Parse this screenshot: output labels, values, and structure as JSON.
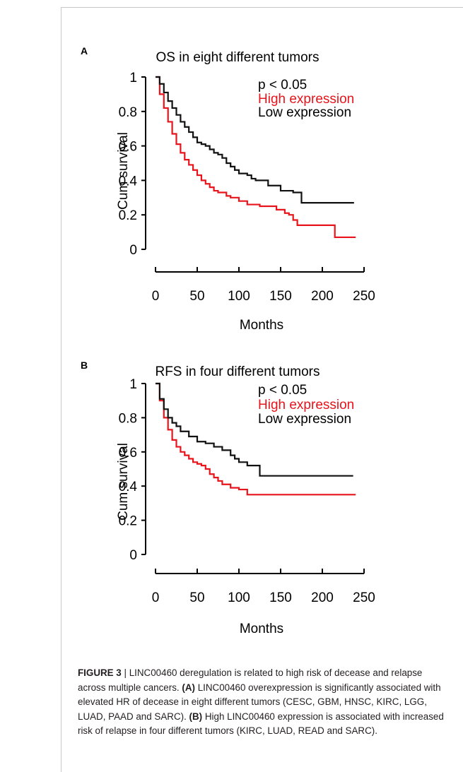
{
  "chart_data": [
    {
      "type": "line",
      "panel_label": "A",
      "title": "OS in eight different tumors",
      "xlabel": "Months",
      "ylabel": "Cum survival",
      "xlim": [
        0,
        250
      ],
      "ylim": [
        0,
        1
      ],
      "xticks": [
        "0",
        "50",
        "100",
        "150",
        "200",
        "250"
      ],
      "yticks": [
        "0",
        "0.2",
        "0.4",
        "0.6",
        "0.8",
        "1"
      ],
      "legend": {
        "placement": "top-right",
        "pvalue": "p < 0.05",
        "entries": [
          "High expression",
          "Low expression"
        ]
      },
      "series": [
        {
          "name": "High expression",
          "color": "#e8141b",
          "x": [
            0,
            5,
            10,
            15,
            20,
            25,
            30,
            35,
            40,
            45,
            50,
            55,
            60,
            65,
            70,
            75,
            80,
            85,
            90,
            100,
            110,
            125,
            135,
            145,
            155,
            160,
            165,
            170,
            185,
            200,
            213,
            215,
            240
          ],
          "y": [
            1,
            0.9,
            0.82,
            0.74,
            0.67,
            0.61,
            0.56,
            0.52,
            0.49,
            0.46,
            0.43,
            0.4,
            0.38,
            0.36,
            0.34,
            0.33,
            0.33,
            0.31,
            0.3,
            0.28,
            0.26,
            0.25,
            0.25,
            0.23,
            0.21,
            0.2,
            0.17,
            0.14,
            0.14,
            0.14,
            0.14,
            0.07,
            0.07
          ]
        },
        {
          "name": "Low expression",
          "color": "#111111",
          "x": [
            0,
            5,
            10,
            15,
            20,
            25,
            30,
            35,
            40,
            45,
            50,
            55,
            60,
            65,
            70,
            75,
            80,
            85,
            90,
            95,
            100,
            110,
            115,
            120,
            125,
            135,
            150,
            165,
            172,
            175,
            200,
            238
          ],
          "y": [
            1,
            0.96,
            0.91,
            0.86,
            0.82,
            0.78,
            0.74,
            0.71,
            0.68,
            0.65,
            0.62,
            0.61,
            0.6,
            0.58,
            0.56,
            0.55,
            0.53,
            0.5,
            0.48,
            0.46,
            0.44,
            0.43,
            0.41,
            0.4,
            0.4,
            0.37,
            0.34,
            0.33,
            0.33,
            0.27,
            0.27,
            0.27
          ]
        }
      ]
    },
    {
      "type": "line",
      "panel_label": "B",
      "title": "RFS in four different tumors",
      "xlabel": "Months",
      "ylabel": "Cum survival",
      "xlim": [
        0,
        250
      ],
      "ylim": [
        0,
        1
      ],
      "xticks": [
        "0",
        "50",
        "100",
        "150",
        "200",
        "250"
      ],
      "yticks": [
        "0",
        "0.2",
        "0.4",
        "0.6",
        "0.8",
        "1"
      ],
      "legend": {
        "placement": "top-right",
        "pvalue": "p < 0.05",
        "entries": [
          "High expression",
          "Low expression"
        ]
      },
      "series": [
        {
          "name": "High expression",
          "color": "#e8141b",
          "x": [
            0,
            5,
            10,
            15,
            20,
            25,
            30,
            35,
            40,
            45,
            50,
            55,
            60,
            65,
            70,
            75,
            80,
            90,
            100,
            110,
            240
          ],
          "y": [
            1,
            0.9,
            0.8,
            0.73,
            0.67,
            0.63,
            0.6,
            0.58,
            0.56,
            0.54,
            0.53,
            0.52,
            0.5,
            0.47,
            0.45,
            0.43,
            0.41,
            0.39,
            0.38,
            0.35,
            0.35
          ]
        },
        {
          "name": "Low expression",
          "color": "#111111",
          "x": [
            0,
            5,
            10,
            15,
            20,
            25,
            30,
            40,
            50,
            60,
            70,
            80,
            90,
            95,
            100,
            110,
            125,
            237
          ],
          "y": [
            1,
            0.91,
            0.85,
            0.8,
            0.77,
            0.75,
            0.72,
            0.69,
            0.66,
            0.65,
            0.63,
            0.61,
            0.58,
            0.56,
            0.54,
            0.52,
            0.46,
            0.46
          ]
        }
      ]
    }
  ],
  "caption": {
    "figure_label": "FIGURE 3",
    "separator": "|",
    "intro": "LINC00460 deregulation is related to high risk of decease and relapse across multiple cancers.",
    "part_a_label": "(A)",
    "part_a_text": "LINC00460 overexpression is significantly associated with elevated HR of decease in eight different tumors (CESC, GBM, HNSC, KIRC, LGG, LUAD, PAAD and SARC).",
    "part_b_label": "(B)",
    "part_b_text": "High LINC00460 expression is associated with increased risk of relapse in four different tumors (KIRC, LUAD, READ and SARC)."
  }
}
